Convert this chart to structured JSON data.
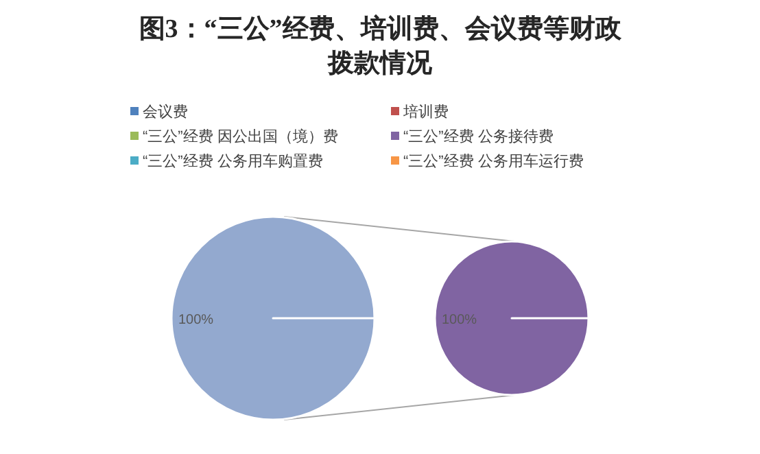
{
  "chart_data": [
    {
      "type": "pie",
      "title": "图3：“三公”经费、培训费、会议费等财政拨款情况",
      "categories": [
        null
      ],
      "values": [
        100
      ],
      "colors": [
        "#93a9cf"
      ],
      "value_labels": [
        "100%"
      ]
    },
    {
      "type": "pie",
      "categories": [
        "会议费",
        "培训费",
        "“三公”经费 因公出国（境）费",
        "“三公”经费 公务接待费",
        "“三公”经费 公务用车购置费",
        "“三公”经费 公务用车运行费"
      ],
      "values": [
        0,
        0,
        0,
        100,
        0,
        0
      ],
      "colors": [
        "#4f81bd",
        "#c0504d",
        "#9bbb59",
        "#8064a2",
        "#4bacc6",
        "#f79646"
      ],
      "value_labels": [
        null,
        null,
        null,
        "100%",
        null,
        null
      ],
      "legend": "top"
    }
  ]
}
